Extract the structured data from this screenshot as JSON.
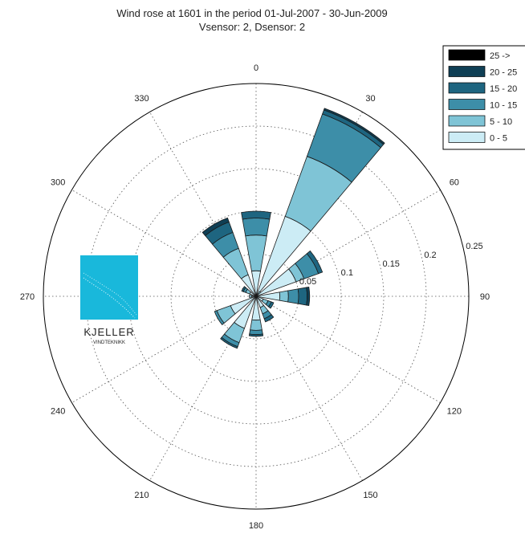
{
  "chart_data": {
    "type": "wind-rose",
    "title": "Wind rose at 1601 in the period 01-Jul-2007  -  30-Jun-2009",
    "subtitle": "Vsensor: 2, Dsensor: 2",
    "directions": [
      "0",
      "30",
      "60",
      "90",
      "120",
      "150",
      "180",
      "210",
      "240",
      "270",
      "300",
      "330"
    ],
    "radial_ticks": [
      "0.05",
      "0.1",
      "0.15",
      "0.2",
      "0.25"
    ],
    "rmax": 0.25,
    "sector_width_deg": 20,
    "speed_bins": [
      {
        "name": "0 - 5",
        "color": "#ccecf5"
      },
      {
        "name": "5 - 10",
        "color": "#7fc4d6"
      },
      {
        "name": "10 - 15",
        "color": "#3d8ea8"
      },
      {
        "name": "15 - 20",
        "color": "#1e6580"
      },
      {
        "name": "20 - 25",
        "color": "#0f3f55"
      },
      {
        "name": "25 ->",
        "color": "#000000"
      }
    ],
    "legend_position": "top-right",
    "sectors": [
      {
        "direction": 0,
        "values": [
          0.03,
          0.042,
          0.02,
          0.008,
          0.0,
          0.0
        ]
      },
      {
        "direction": 20,
        "values": [
          0.001,
          0.001,
          0.001,
          0.0,
          0.0,
          0.0
        ]
      },
      {
        "direction": 30,
        "values": [
          0.1,
          0.075,
          0.053,
          0.005,
          0.002,
          0.0
        ]
      },
      {
        "direction": 45,
        "values": [
          0.004,
          0.003,
          0.0,
          0.0,
          0.0,
          0.0
        ]
      },
      {
        "direction": 60,
        "values": [
          0.05,
          0.01,
          0.018,
          0.005,
          0.0,
          0.0
        ]
      },
      {
        "direction": 90,
        "values": [
          0.028,
          0.01,
          0.012,
          0.01,
          0.003,
          0.0
        ]
      },
      {
        "direction": 120,
        "values": [
          0.009,
          0.006,
          0.004,
          0.003,
          0.0,
          0.0
        ]
      },
      {
        "direction": 150,
        "values": [
          0.014,
          0.008,
          0.006,
          0.004,
          0.0,
          0.0
        ]
      },
      {
        "direction": 180,
        "values": [
          0.028,
          0.012,
          0.005,
          0.002,
          0.0,
          0.0
        ]
      },
      {
        "direction": 210,
        "values": [
          0.04,
          0.018,
          0.005,
          0.002,
          0.0,
          0.0
        ]
      },
      {
        "direction": 240,
        "values": [
          0.032,
          0.017,
          0.003,
          0.0,
          0.0,
          0.0
        ]
      },
      {
        "direction": 270,
        "values": [
          0.005,
          0.003,
          0.0,
          0.0,
          0.0,
          0.0
        ]
      },
      {
        "direction": 300,
        "values": [
          0.008,
          0.005,
          0.003,
          0.002,
          0.0,
          0.0
        ]
      },
      {
        "direction": 330,
        "values": [
          0.027,
          0.033,
          0.02,
          0.013,
          0.005,
          0.0
        ]
      }
    ]
  },
  "logo": {
    "brand": "KJELLER",
    "sub": "VINDTEKNIKK"
  }
}
